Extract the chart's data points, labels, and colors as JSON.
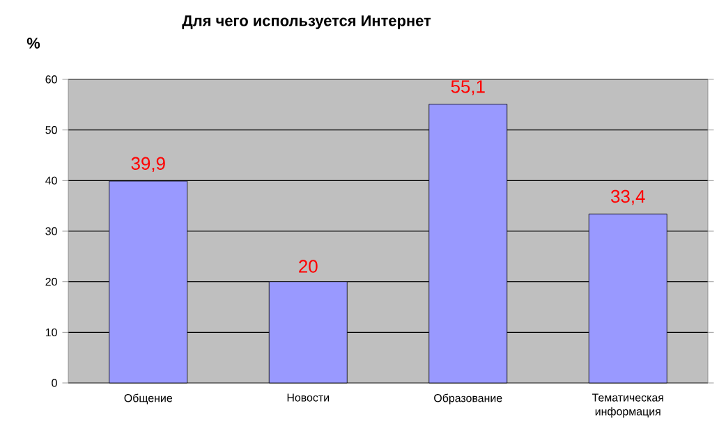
{
  "chart_data": {
    "type": "bar",
    "title": "Для чего используется Интернет",
    "ylabel": "%",
    "categories": [
      "Общение",
      "Новости",
      "Образование",
      "Тематическая информация"
    ],
    "values": [
      39.9,
      20,
      55.1,
      33.4
    ],
    "value_labels": [
      "39,9",
      "20",
      "55,1",
      "33,4"
    ],
    "color": "#9999ff",
    "ylim": [
      0,
      60
    ],
    "yticks": [
      0,
      10,
      20,
      30,
      40,
      50,
      60
    ],
    "grid": "y"
  }
}
